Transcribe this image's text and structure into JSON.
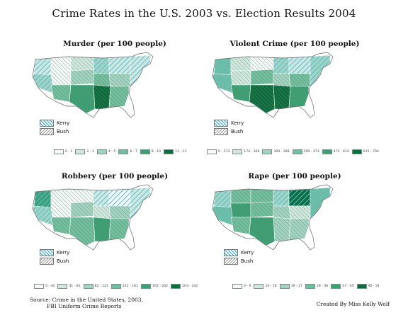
{
  "title": "Crime Rates in the U.S. 2003 vs. Election Results 2004",
  "party_legend": {
    "kerry": "Kerry",
    "bush": "Bush"
  },
  "party_colors": {
    "kerry_hatch": "#5db8dd",
    "bush_hatch": "#777777"
  },
  "panels": [
    {
      "id": "murder",
      "title": "Murder (per 100 people)",
      "scale": [
        {
          "label": "0 - 1",
          "color": "#f1faf6"
        },
        {
          "label": "2 - 3",
          "color": "#cde9de"
        },
        {
          "label": "4 - 5",
          "color": "#9fd4c0"
        },
        {
          "label": "6 - 7",
          "color": "#6fbf9d"
        },
        {
          "label": "8 - 10",
          "color": "#3ba172"
        },
        {
          "label": "11 - 13",
          "color": "#0b6e3c"
        }
      ],
      "fill_levels": [
        1,
        0,
        1,
        2,
        0,
        2,
        3,
        1,
        2,
        3,
        4,
        5,
        3,
        2,
        1
      ]
    },
    {
      "id": "violent",
      "title": "Violent Crime (per 100 people)",
      "scale": [
        {
          "label": "0 - 173",
          "color": "#f1faf6"
        },
        {
          "label": "174 - 308",
          "color": "#cde9de"
        },
        {
          "label": "309 - 398",
          "color": "#9fd4c0"
        },
        {
          "label": "399 - 473",
          "color": "#6fbf9d"
        },
        {
          "label": "474 - 614",
          "color": "#3ba172"
        },
        {
          "label": "615 - 794",
          "color": "#0b6e3c"
        }
      ],
      "fill_levels": [
        3,
        1,
        0,
        2,
        1,
        3,
        2,
        1,
        3,
        4,
        5,
        5,
        4,
        3,
        2
      ]
    },
    {
      "id": "robbery",
      "title": "Robbery (per 100 people)",
      "scale": [
        {
          "label": "0 - 40",
          "color": "#f1faf6"
        },
        {
          "label": "41 - 81",
          "color": "#cde9de"
        },
        {
          "label": "82 - 121",
          "color": "#9fd4c0"
        },
        {
          "label": "122 - 161",
          "color": "#6fbf9d"
        },
        {
          "label": "162 - 202",
          "color": "#3ba172"
        },
        {
          "label": "203 - 242",
          "color": "#0b6e3c"
        }
      ],
      "fill_levels": [
        4,
        0,
        0,
        1,
        0,
        2,
        1,
        0,
        2,
        3,
        3,
        4,
        3,
        2,
        1
      ]
    },
    {
      "id": "rape",
      "title": "Rape (per 100 people)",
      "scale": [
        {
          "label": "0 - 9",
          "color": "#f1faf6"
        },
        {
          "label": "10 - 18",
          "color": "#cde9de"
        },
        {
          "label": "19 - 27",
          "color": "#9fd4c0"
        },
        {
          "label": "28 - 36",
          "color": "#6fbf9d"
        },
        {
          "label": "37 - 45",
          "color": "#3ba172"
        },
        {
          "label": "46 - 54",
          "color": "#0b6e3c"
        }
      ],
      "fill_levels": [
        2,
        3,
        3,
        2,
        4,
        3,
        2,
        5,
        3,
        3,
        4,
        2,
        2,
        1,
        3
      ]
    }
  ],
  "source": {
    "line1": "Source: Crime in the United States, 2003,",
    "line2": "FBI Uniform Crime Reports"
  },
  "credit": "Created By Miss Kelly Wolf"
}
